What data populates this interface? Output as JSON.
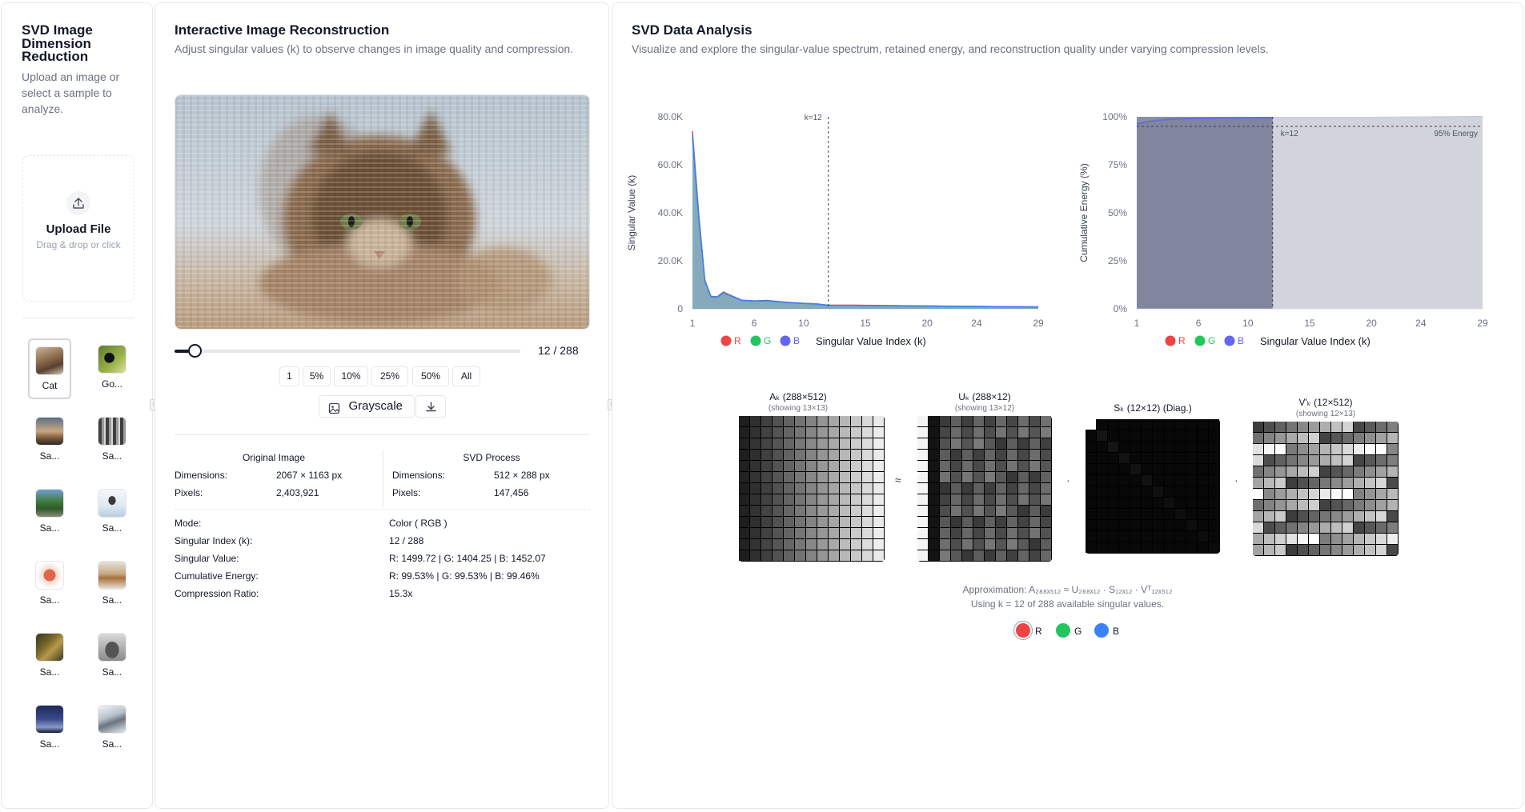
{
  "sidebar": {
    "title": "SVD Image Dimension Reduction",
    "desc": "Upload an image or select a sample to analyze.",
    "upload_label": "Upload File",
    "upload_sub": "Drag & drop or click",
    "samples": [
      {
        "name": "Cat"
      },
      {
        "name": "Go..."
      },
      {
        "name": "Sa..."
      },
      {
        "name": "Sa..."
      },
      {
        "name": "Sa..."
      },
      {
        "name": "Sa..."
      },
      {
        "name": "Sa..."
      },
      {
        "name": "Sa..."
      },
      {
        "name": "Sa..."
      },
      {
        "name": "Sa..."
      },
      {
        "name": "Sa..."
      },
      {
        "name": "Sa..."
      }
    ]
  },
  "recon": {
    "title": "Interactive Image Reconstruction",
    "subtitle": "Adjust singular values (k) to observe changes in image quality and compression.",
    "k_display": "12 / 288",
    "k_fraction": 0.0417,
    "presets": [
      "1",
      "5%",
      "10%",
      "25%",
      "50%",
      "All"
    ],
    "grayscale_label": "Grayscale",
    "original": {
      "heading": "Original Image",
      "dims_label": "Dimensions:",
      "dims": "2067 × 1163 px",
      "pixels_label": "Pixels:",
      "pixels": "2,403,921"
    },
    "process": {
      "heading": "SVD Process",
      "dims_label": "Dimensions:",
      "dims": "512 × 288 px",
      "pixels_label": "Pixels:",
      "pixels": "147,456"
    },
    "details": [
      {
        "label": "Mode:",
        "value": "Color ( RGB )"
      },
      {
        "label": "Singular Index (k):",
        "value": "12 / 288"
      },
      {
        "label": "Singular Value:",
        "value": "R: 1499.72 | G: 1404.25 | B: 1452.07"
      },
      {
        "label": "Cumulative Energy:",
        "value": "R: 99.53% | G: 99.53% | B: 99.46%"
      },
      {
        "label": "Compression Ratio:",
        "value": "15.3x"
      }
    ]
  },
  "analysis": {
    "title": "SVD Data Analysis",
    "subtitle": "Visualize and explore the singular-value spectrum, retained energy, and reconstruction quality under varying compression levels.",
    "approx_line": "Approximation: A₂₈₈ₓ₅₁₂ ≈ U₂₈₈ₓ₁₂ · S₁₂ₓ₁₂ · Vᵀ₁₂ₓ₅₁₂",
    "using_line": "Using k = 12 of 288 available singular values.",
    "channels": [
      "R",
      "G",
      "B"
    ],
    "channel_colors": [
      "#ef4444",
      "#22c55e",
      "#3b82f6"
    ],
    "matrices": [
      {
        "title": "Aₖ (288×512)",
        "sub": "(showing 13×13)"
      },
      {
        "title": "Uₖ (288×12)",
        "sub": "(showing 13×12)"
      },
      {
        "title": "Sₖ (12×12) (Diag.)",
        "sub": ""
      },
      {
        "title": "V'ₖ (12×512)",
        "sub": "(showing 12×13)"
      }
    ],
    "ops": [
      "≈",
      "·",
      "·"
    ]
  },
  "chart_data": [
    {
      "type": "area",
      "ylabel": "Singular Value (k)",
      "xlabel": "Singular Value Index (k)",
      "x_ticks": [
        1,
        6,
        10,
        15,
        20,
        24,
        29
      ],
      "y_ticks": [
        "0",
        "20.0K",
        "40.0K",
        "60.0K",
        "80.0K"
      ],
      "ylim": [
        0,
        80000
      ],
      "xlim": [
        1,
        29
      ],
      "k_marker": 12,
      "k_label": "k=12",
      "legend": [
        "R",
        "G",
        "B"
      ],
      "series": [
        {
          "name": "R",
          "color": "#ef4444",
          "x": [
            1,
            1.5,
            2,
            2.5,
            3,
            3.5,
            4,
            5,
            6,
            7,
            8,
            9,
            10,
            11,
            12,
            14,
            16,
            18,
            20,
            22,
            24,
            26,
            29
          ],
          "values": [
            74000,
            40000,
            12000,
            5200,
            5000,
            7000,
            5800,
            3600,
            3300,
            3500,
            3000,
            2600,
            2300,
            2100,
            1500,
            1500,
            1400,
            1300,
            1200,
            1100,
            1000,
            900,
            800
          ]
        },
        {
          "name": "G",
          "color": "#22c55e",
          "x": [
            1,
            1.5,
            2,
            2.5,
            3,
            3.5,
            4,
            5,
            6,
            7,
            8,
            9,
            10,
            11,
            12,
            14,
            16,
            18,
            20,
            22,
            24,
            26,
            29
          ],
          "values": [
            71000,
            38000,
            11500,
            5000,
            4800,
            6600,
            5500,
            3500,
            3200,
            3300,
            2900,
            2500,
            2200,
            2000,
            1400,
            1400,
            1300,
            1200,
            1100,
            1000,
            950,
            850,
            750
          ]
        },
        {
          "name": "B",
          "color": "#3b82f6",
          "x": [
            1,
            1.5,
            2,
            2.5,
            3,
            3.5,
            4,
            5,
            6,
            7,
            8,
            9,
            10,
            11,
            12,
            14,
            16,
            18,
            20,
            22,
            24,
            26,
            29
          ],
          "values": [
            72500,
            39000,
            11800,
            5100,
            4900,
            6800,
            5600,
            3550,
            3250,
            3400,
            2950,
            2550,
            2250,
            2050,
            1450,
            1450,
            1350,
            1250,
            1150,
            1050,
            980,
            880,
            780
          ]
        }
      ]
    },
    {
      "type": "area",
      "ylabel": "Cumulative Energy (%)",
      "xlabel": "Singular Value Index (k)",
      "x_ticks": [
        1,
        6,
        10,
        15,
        20,
        24,
        29
      ],
      "y_ticks": [
        "0%",
        "25%",
        "50%",
        "75%",
        "100%"
      ],
      "ylim": [
        0,
        100
      ],
      "xlim": [
        1,
        29
      ],
      "k_marker": 12,
      "k_label": "k=12",
      "threshold": 95,
      "threshold_label": "95% Energy",
      "legend": [
        "R",
        "G",
        "B"
      ],
      "series": [
        {
          "name": "R",
          "color": "#ef4444",
          "x": [
            1,
            2,
            3,
            4,
            6,
            8,
            10,
            12,
            15,
            20,
            24,
            29
          ],
          "values": [
            96.5,
            97.8,
            98.6,
            99.0,
            99.3,
            99.4,
            99.5,
            99.53,
            99.6,
            99.7,
            99.75,
            99.8
          ]
        },
        {
          "name": "G",
          "color": "#22c55e",
          "x": [
            1,
            2,
            3,
            4,
            6,
            8,
            10,
            12,
            15,
            20,
            24,
            29
          ],
          "values": [
            96.4,
            97.7,
            98.5,
            98.9,
            99.2,
            99.4,
            99.5,
            99.53,
            99.6,
            99.7,
            99.75,
            99.8
          ]
        },
        {
          "name": "B",
          "color": "#6366f1",
          "x": [
            1,
            2,
            3,
            4,
            6,
            8,
            10,
            12,
            15,
            20,
            24,
            29
          ],
          "values": [
            96.2,
            97.5,
            98.3,
            98.8,
            99.1,
            99.3,
            99.4,
            99.46,
            99.55,
            99.65,
            99.7,
            99.75
          ]
        }
      ]
    }
  ]
}
